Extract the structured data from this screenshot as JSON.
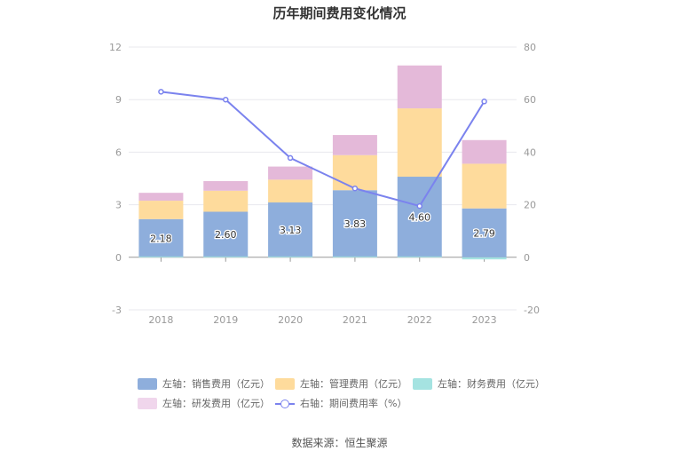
{
  "title": "历年期间费用变化情况",
  "source": "数据来源：恒生聚源",
  "colors": {
    "sales": "#8eaedc",
    "admin": "#fedb9c",
    "finance": "#a5e3e1",
    "rnd": "#e4b9d9",
    "rate": "#7b83ee",
    "axis": "#999999",
    "grid": "#e8e8ee"
  },
  "legend": [
    {
      "label": "左轴：销售费用（亿元）",
      "color": "#8eaedc",
      "kind": "bar"
    },
    {
      "label": "左轴：管理费用（亿元）",
      "color": "#fedb9c",
      "kind": "bar"
    },
    {
      "label": "左轴：财务费用（亿元）",
      "color": "#a5e3e1",
      "kind": "bar"
    },
    {
      "label": "左轴：研发费用（亿元）",
      "color": "#f0d6ec",
      "kind": "bar"
    },
    {
      "label": "右轴：期间费用率（%）",
      "color": "#7b83ee",
      "kind": "line"
    }
  ],
  "chart_data": {
    "type": "bar",
    "title": "历年期间费用变化情况",
    "categories": [
      "2018",
      "2019",
      "2020",
      "2021",
      "2022",
      "2023"
    ],
    "series": [
      {
        "name": "左轴：销售费用（亿元）",
        "axis": "left",
        "values": [
          2.18,
          2.6,
          3.13,
          3.83,
          4.6,
          2.79
        ],
        "labels": [
          "2.18",
          "2.60",
          "3.13",
          "3.83",
          "4.60",
          "2.79"
        ]
      },
      {
        "name": "左轴：管理费用（亿元）",
        "axis": "left",
        "values": [
          1.05,
          1.2,
          1.3,
          2.0,
          3.9,
          2.55
        ]
      },
      {
        "name": "左轴：财务费用（亿元）",
        "axis": "left",
        "values": [
          0.02,
          0.02,
          0.02,
          0.02,
          0.02,
          -0.12
        ]
      },
      {
        "name": "左轴：研发费用（亿元）",
        "axis": "left",
        "values": [
          0.45,
          0.55,
          0.75,
          1.15,
          2.45,
          1.35
        ]
      },
      {
        "name": "右轴：期间费用率（%）",
        "axis": "right",
        "type": "line",
        "values": [
          63.0,
          60.0,
          37.8,
          26.2,
          19.5,
          59.3
        ]
      }
    ],
    "left_axis": {
      "ylim": [
        -3,
        12
      ],
      "ticks": [
        -3,
        0,
        3,
        6,
        9,
        12
      ]
    },
    "right_axis": {
      "ylim": [
        -20,
        80
      ],
      "ticks": [
        -20,
        0,
        20,
        40,
        60,
        80
      ]
    },
    "grid": true,
    "legend_position": "bottom"
  }
}
